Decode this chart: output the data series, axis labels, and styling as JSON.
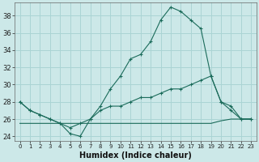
{
  "xlabel": "Humidex (Indice chaleur)",
  "bg_color": "#cce8e8",
  "grid_color": "#aad4d4",
  "line_color": "#1a6b5a",
  "x_values": [
    0,
    1,
    2,
    3,
    4,
    5,
    6,
    7,
    8,
    9,
    10,
    11,
    12,
    13,
    14,
    15,
    16,
    17,
    18,
    19,
    20,
    21,
    22,
    23
  ],
  "main_line": [
    28,
    27,
    26.5,
    26,
    25.5,
    24.3,
    24.0,
    26.0,
    27.5,
    29.5,
    31.0,
    33.0,
    33.5,
    35.0,
    37.5,
    39.0,
    38.5,
    37.5,
    36.5,
    31.0,
    28.0,
    27.0,
    26.0,
    26.0
  ],
  "line2": [
    28,
    27,
    26.5,
    26,
    25.5,
    25.0,
    25.5,
    26.0,
    27.0,
    27.5,
    27.5,
    28.0,
    28.5,
    28.5,
    29.0,
    29.5,
    29.5,
    30.0,
    30.5,
    31.0,
    28.0,
    27.5,
    26.0,
    26.0
  ],
  "line3": [
    25.5,
    25.5,
    25.5,
    25.5,
    25.5,
    25.5,
    25.5,
    25.5,
    25.5,
    25.5,
    25.5,
    25.5,
    25.5,
    25.5,
    25.5,
    25.5,
    25.5,
    25.5,
    25.5,
    25.5,
    25.8,
    26.0,
    26.0,
    26.0
  ],
  "ylim": [
    23.5,
    39.5
  ],
  "yticks": [
    24,
    26,
    28,
    30,
    32,
    34,
    36,
    38
  ],
  "xlim": [
    -0.5,
    23.5
  ]
}
